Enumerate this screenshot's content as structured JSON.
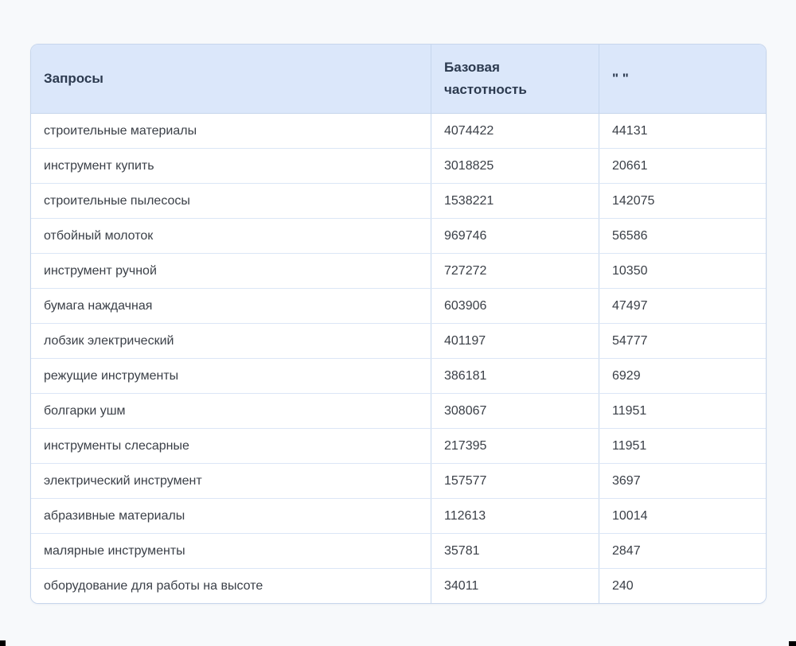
{
  "table": {
    "columns": [
      {
        "id": "query",
        "label": "Запросы"
      },
      {
        "id": "base_frequency",
        "label": "Базовая частотность"
      },
      {
        "id": "quoted_frequency",
        "label": "\" \""
      }
    ],
    "rows": [
      {
        "query": "строительные материалы",
        "base_frequency": "4074422",
        "quoted_frequency": "44131"
      },
      {
        "query": "инструмент купить",
        "base_frequency": "3018825",
        "quoted_frequency": "20661"
      },
      {
        "query": "строительные пылесосы",
        "base_frequency": "1538221",
        "quoted_frequency": "142075"
      },
      {
        "query": "отбойный молоток",
        "base_frequency": "969746",
        "quoted_frequency": "56586"
      },
      {
        "query": "инструмент ручной",
        "base_frequency": "727272",
        "quoted_frequency": "10350"
      },
      {
        "query": "бумага наждачная",
        "base_frequency": "603906",
        "quoted_frequency": "47497"
      },
      {
        "query": "лобзик электрический",
        "base_frequency": "401197",
        "quoted_frequency": "54777"
      },
      {
        "query": "режущие инструменты",
        "base_frequency": "386181",
        "quoted_frequency": "6929"
      },
      {
        "query": "болгарки ушм",
        "base_frequency": "308067",
        "quoted_frequency": "11951"
      },
      {
        "query": "инструменты слесарные",
        "base_frequency": "217395",
        "quoted_frequency": "11951"
      },
      {
        "query": "электрический инструмент",
        "base_frequency": "157577",
        "quoted_frequency": "3697"
      },
      {
        "query": "абразивные материалы",
        "base_frequency": "112613",
        "quoted_frequency": "10014"
      },
      {
        "query": "малярные инструменты",
        "base_frequency": "35781",
        "quoted_frequency": "2847"
      },
      {
        "query": "оборудование для работы на высоте",
        "base_frequency": "34011",
        "quoted_frequency": "240"
      }
    ]
  },
  "colors": {
    "page_bg": "#f7f9fb",
    "card_bg": "#ffffff",
    "card_border": "#c7d6ec",
    "header_bg": "#dbe7fa",
    "header_text": "#2c3a4f",
    "body_text": "#3b4048",
    "divider_v": "#c6d7ee",
    "divider_h": "#dbe6f6",
    "artifact": "#000000"
  }
}
